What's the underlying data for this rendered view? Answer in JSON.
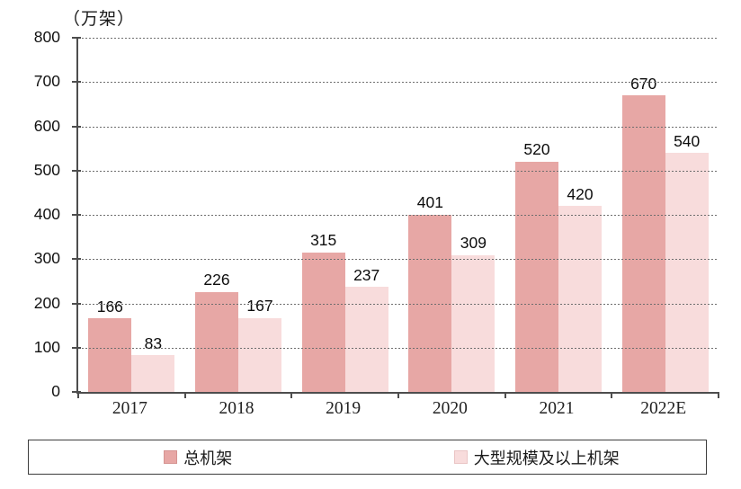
{
  "chart_data": {
    "type": "bar",
    "title": "",
    "unit_label": "（万架）",
    "categories": [
      "2017",
      "2018",
      "2019",
      "2020",
      "2021",
      "2022E"
    ],
    "series": [
      {
        "name": "总机架",
        "color": "#e7a7a5",
        "border_color": "#d59391",
        "values": [
          166,
          226,
          315,
          401,
          520,
          670
        ]
      },
      {
        "name": "大型规模及以上机架",
        "color": "#f8dcdc",
        "border_color": "#eac5c5",
        "values": [
          83,
          167,
          237,
          309,
          420,
          540
        ]
      }
    ],
    "ylim": [
      0,
      800
    ],
    "ytick_step": 100,
    "yticks": [
      0,
      100,
      200,
      300,
      400,
      500,
      600,
      700,
      800
    ],
    "grid": "horizontal dotted lines at every 100",
    "legend_position": "bottom boxed row",
    "axis_color": "#4d4d4d",
    "gridline_color": "#6e6e6e",
    "label_color": "#1a1a1a"
  }
}
